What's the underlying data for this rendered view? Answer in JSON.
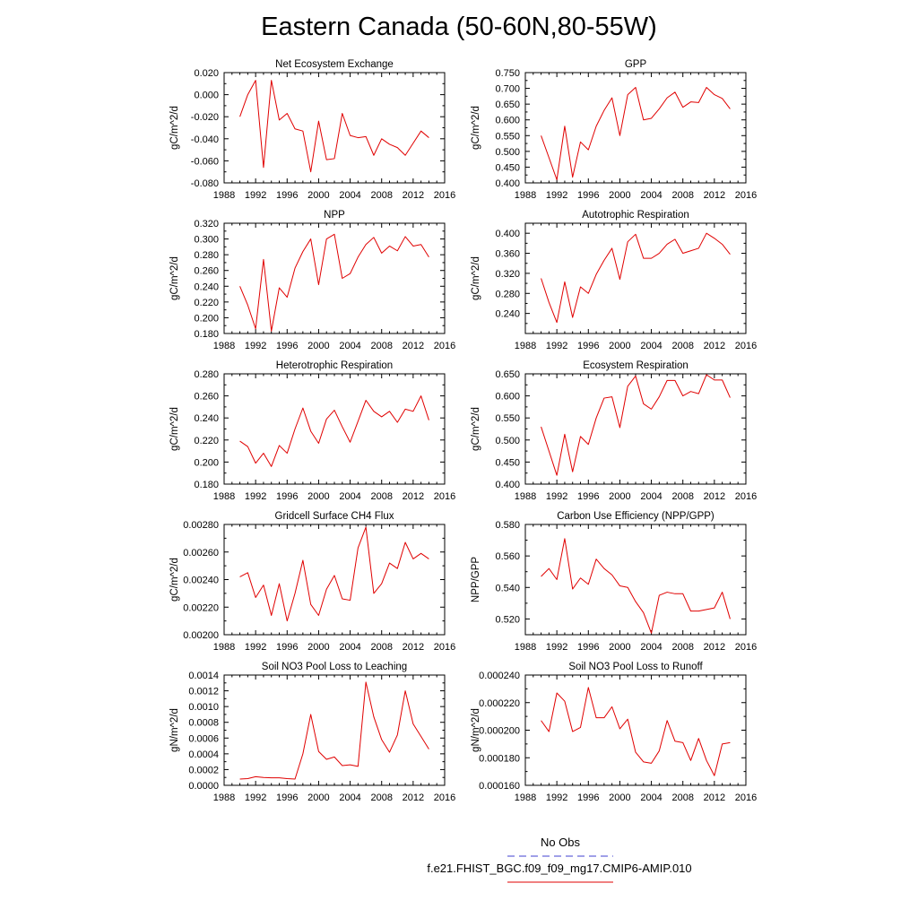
{
  "page": {
    "title": "Eastern Canada (50-60N,80-55W)"
  },
  "legend": {
    "obs_label": "No Obs",
    "obs_color": "#4040d0",
    "model_label": "f.e21.FHIST_BGC.f09_f09_mg17.CMIP6-AMIP.010",
    "model_color": "#e00000"
  },
  "chart_data": [
    {
      "type": "line",
      "title": "Net Ecosystem Exchange",
      "ylabel": "gC/m^2/d",
      "xlabel": "",
      "xlim": [
        1988,
        2016
      ],
      "ylim": [
        -0.08,
        0.02
      ],
      "xticks": [
        1988,
        1992,
        1996,
        2000,
        2004,
        2008,
        2012,
        2016
      ],
      "xtick_labels": [
        "1988",
        "1992",
        "1996",
        "2000",
        "2004",
        "2008",
        "2012",
        "2016"
      ],
      "yticks": [
        -0.08,
        -0.06,
        -0.04,
        -0.02,
        0.0,
        0.02
      ],
      "ytick_labels": [
        "-0.080",
        "-0.060",
        "-0.040",
        "-0.020",
        "0.000",
        "0.020"
      ],
      "x": [
        1990,
        1991,
        1992,
        1993,
        1994,
        1995,
        1996,
        1997,
        1998,
        1999,
        2000,
        2001,
        2002,
        2003,
        2004,
        2005,
        2006,
        2007,
        2008,
        2009,
        2010,
        2011,
        2012,
        2013,
        2014
      ],
      "series": [
        {
          "values": [
            -0.02,
            0.0,
            0.013,
            -0.066,
            0.013,
            -0.023,
            -0.017,
            -0.031,
            -0.033,
            -0.07,
            -0.024,
            -0.059,
            -0.058,
            -0.017,
            -0.037,
            -0.039,
            -0.038,
            -0.055,
            -0.04,
            -0.045,
            -0.048,
            -0.055,
            -0.044,
            -0.033,
            -0.039
          ]
        }
      ]
    },
    {
      "type": "line",
      "title": "GPP",
      "ylabel": "gC/m^2/d",
      "xlabel": "",
      "xlim": [
        1988,
        2016
      ],
      "ylim": [
        0.4,
        0.75
      ],
      "xticks": [
        1988,
        1992,
        1996,
        2000,
        2004,
        2008,
        2012,
        2016
      ],
      "xtick_labels": [
        "1988",
        "1992",
        "1996",
        "2000",
        "2004",
        "2008",
        "2012",
        "2016"
      ],
      "yticks": [
        0.4,
        0.45,
        0.5,
        0.55,
        0.6,
        0.65,
        0.7,
        0.75
      ],
      "ytick_labels": [
        "0.400",
        "0.450",
        "0.500",
        "0.550",
        "0.600",
        "0.650",
        "0.700",
        "0.750"
      ],
      "x": [
        1990,
        1991,
        1992,
        1993,
        1994,
        1995,
        1996,
        1997,
        1998,
        1999,
        2000,
        2001,
        2002,
        2003,
        2004,
        2005,
        2006,
        2007,
        2008,
        2009,
        2010,
        2011,
        2012,
        2013,
        2014
      ],
      "series": [
        {
          "values": [
            0.55,
            0.48,
            0.41,
            0.58,
            0.418,
            0.53,
            0.505,
            0.58,
            0.63,
            0.67,
            0.55,
            0.68,
            0.703,
            0.6,
            0.605,
            0.635,
            0.67,
            0.688,
            0.64,
            0.657,
            0.655,
            0.703,
            0.68,
            0.668,
            0.635
          ]
        }
      ]
    },
    {
      "type": "line",
      "title": "NPP",
      "ylabel": "gC/m^2/d",
      "xlabel": "",
      "xlim": [
        1988,
        2016
      ],
      "ylim": [
        0.18,
        0.32
      ],
      "xticks": [
        1988,
        1992,
        1996,
        2000,
        2004,
        2008,
        2012,
        2016
      ],
      "xtick_labels": [
        "1988",
        "1992",
        "1996",
        "2000",
        "2004",
        "2008",
        "2012",
        "2016"
      ],
      "yticks": [
        0.18,
        0.2,
        0.22,
        0.24,
        0.26,
        0.28,
        0.3,
        0.32
      ],
      "ytick_labels": [
        "0.180",
        "0.200",
        "0.220",
        "0.240",
        "0.260",
        "0.280",
        "0.300",
        "0.320"
      ],
      "x": [
        1990,
        1991,
        1992,
        1993,
        1994,
        1995,
        1996,
        1997,
        1998,
        1999,
        2000,
        2001,
        2002,
        2003,
        2004,
        2005,
        2006,
        2007,
        2008,
        2009,
        2010,
        2011,
        2012,
        2013,
        2014
      ],
      "series": [
        {
          "values": [
            0.24,
            0.216,
            0.186,
            0.274,
            0.183,
            0.238,
            0.226,
            0.263,
            0.284,
            0.3,
            0.242,
            0.3,
            0.306,
            0.25,
            0.256,
            0.277,
            0.293,
            0.302,
            0.282,
            0.291,
            0.285,
            0.303,
            0.291,
            0.293,
            0.277
          ]
        }
      ]
    },
    {
      "type": "line",
      "title": "Autotrophic Respiration",
      "ylabel": "gC/m^2/d",
      "xlabel": "",
      "xlim": [
        1988,
        2016
      ],
      "ylim": [
        0.2,
        0.42
      ],
      "xticks": [
        1988,
        1992,
        1996,
        2000,
        2004,
        2008,
        2012,
        2016
      ],
      "xtick_labels": [
        "1988",
        "1992",
        "1996",
        "2000",
        "2004",
        "2008",
        "2012",
        "2016"
      ],
      "yticks": [
        0.24,
        0.28,
        0.32,
        0.36,
        0.4
      ],
      "ytick_labels": [
        "0.240",
        "0.280",
        "0.320",
        "0.360",
        "0.400"
      ],
      "x": [
        1990,
        1991,
        1992,
        1993,
        1994,
        1995,
        1996,
        1997,
        1998,
        1999,
        2000,
        2001,
        2002,
        2003,
        2004,
        2005,
        2006,
        2007,
        2008,
        2009,
        2010,
        2011,
        2012,
        2013,
        2014
      ],
      "series": [
        {
          "values": [
            0.31,
            0.262,
            0.222,
            0.303,
            0.232,
            0.293,
            0.28,
            0.318,
            0.346,
            0.37,
            0.308,
            0.383,
            0.398,
            0.35,
            0.35,
            0.36,
            0.378,
            0.388,
            0.36,
            0.365,
            0.37,
            0.4,
            0.39,
            0.378,
            0.358
          ]
        }
      ]
    },
    {
      "type": "line",
      "title": "Heterotrophic Respiration",
      "ylabel": "gC/m^2/d",
      "xlabel": "",
      "xlim": [
        1988,
        2016
      ],
      "ylim": [
        0.18,
        0.28
      ],
      "xticks": [
        1988,
        1992,
        1996,
        2000,
        2004,
        2008,
        2012,
        2016
      ],
      "xtick_labels": [
        "1988",
        "1992",
        "1996",
        "2000",
        "2004",
        "2008",
        "2012",
        "2016"
      ],
      "yticks": [
        0.18,
        0.2,
        0.22,
        0.24,
        0.26,
        0.28
      ],
      "ytick_labels": [
        "0.180",
        "0.200",
        "0.220",
        "0.240",
        "0.260",
        "0.280"
      ],
      "x": [
        1990,
        1991,
        1992,
        1993,
        1994,
        1995,
        1996,
        1997,
        1998,
        1999,
        2000,
        2001,
        2002,
        2003,
        2004,
        2005,
        2006,
        2007,
        2008,
        2009,
        2010,
        2011,
        2012,
        2013,
        2014
      ],
      "series": [
        {
          "values": [
            0.219,
            0.214,
            0.199,
            0.208,
            0.196,
            0.215,
            0.208,
            0.23,
            0.249,
            0.228,
            0.217,
            0.239,
            0.247,
            0.232,
            0.218,
            0.237,
            0.256,
            0.246,
            0.241,
            0.246,
            0.236,
            0.248,
            0.246,
            0.26,
            0.238
          ]
        }
      ]
    },
    {
      "type": "line",
      "title": "Ecosystem Respiration",
      "ylabel": "gC/m^2/d",
      "xlabel": "",
      "xlim": [
        1988,
        2016
      ],
      "ylim": [
        0.4,
        0.65
      ],
      "xticks": [
        1988,
        1992,
        1996,
        2000,
        2004,
        2008,
        2012,
        2016
      ],
      "xtick_labels": [
        "1988",
        "1992",
        "1996",
        "2000",
        "2004",
        "2008",
        "2012",
        "2016"
      ],
      "yticks": [
        0.4,
        0.45,
        0.5,
        0.55,
        0.6,
        0.65
      ],
      "ytick_labels": [
        "0.400",
        "0.450",
        "0.500",
        "0.550",
        "0.600",
        "0.650"
      ],
      "x": [
        1990,
        1991,
        1992,
        1993,
        1994,
        1995,
        1996,
        1997,
        1998,
        1999,
        2000,
        2001,
        2002,
        2003,
        2004,
        2005,
        2006,
        2007,
        2008,
        2009,
        2010,
        2011,
        2012,
        2013,
        2014
      ],
      "series": [
        {
          "values": [
            0.53,
            0.475,
            0.42,
            0.513,
            0.428,
            0.508,
            0.49,
            0.55,
            0.595,
            0.598,
            0.528,
            0.622,
            0.645,
            0.582,
            0.57,
            0.598,
            0.635,
            0.635,
            0.6,
            0.61,
            0.605,
            0.648,
            0.636,
            0.636,
            0.596
          ]
        }
      ]
    },
    {
      "type": "line",
      "title": "Gridcell Surface CH4 Flux",
      "ylabel": "gC/m^2/d",
      "xlabel": "",
      "xlim": [
        1988,
        2016
      ],
      "ylim": [
        0.002,
        0.0028
      ],
      "xticks": [
        1988,
        1992,
        1996,
        2000,
        2004,
        2008,
        2012,
        2016
      ],
      "xtick_labels": [
        "1988",
        "1992",
        "1996",
        "2000",
        "2004",
        "2008",
        "2012",
        "2016"
      ],
      "yticks": [
        0.002,
        0.0022,
        0.0024,
        0.0026,
        0.0028
      ],
      "ytick_labels": [
        "0.00200",
        "0.00220",
        "0.00240",
        "0.00260",
        "0.00280"
      ],
      "x": [
        1990,
        1991,
        1992,
        1993,
        1994,
        1995,
        1996,
        1997,
        1998,
        1999,
        2000,
        2001,
        2002,
        2003,
        2004,
        2005,
        2006,
        2007,
        2008,
        2009,
        2010,
        2011,
        2012,
        2013,
        2014
      ],
      "series": [
        {
          "values": [
            0.00242,
            0.00245,
            0.00227,
            0.00236,
            0.00214,
            0.00237,
            0.0021,
            0.0023,
            0.00254,
            0.00222,
            0.00214,
            0.00233,
            0.00243,
            0.00226,
            0.00225,
            0.00263,
            0.00278,
            0.0023,
            0.00237,
            0.00252,
            0.00248,
            0.00267,
            0.00255,
            0.00259,
            0.00255
          ]
        }
      ]
    },
    {
      "type": "line",
      "title": "Carbon Use Efficiency (NPP/GPP)",
      "ylabel": "NPP/GPP",
      "xlabel": "",
      "xlim": [
        1988,
        2016
      ],
      "ylim": [
        0.51,
        0.58
      ],
      "xticks": [
        1988,
        1992,
        1996,
        2000,
        2004,
        2008,
        2012,
        2016
      ],
      "xtick_labels": [
        "1988",
        "1992",
        "1996",
        "2000",
        "2004",
        "2008",
        "2012",
        "2016"
      ],
      "yticks": [
        0.52,
        0.54,
        0.56,
        0.58
      ],
      "ytick_labels": [
        "0.520",
        "0.540",
        "0.560",
        "0.580"
      ],
      "x": [
        1990,
        1991,
        1992,
        1993,
        1994,
        1995,
        1996,
        1997,
        1998,
        1999,
        2000,
        2001,
        2002,
        2003,
        2004,
        2005,
        2006,
        2007,
        2008,
        2009,
        2010,
        2011,
        2012,
        2013,
        2014
      ],
      "series": [
        {
          "values": [
            0.547,
            0.552,
            0.545,
            0.571,
            0.539,
            0.546,
            0.542,
            0.558,
            0.552,
            0.548,
            0.541,
            0.54,
            0.531,
            0.524,
            0.511,
            0.535,
            0.537,
            0.536,
            0.536,
            0.525,
            0.525,
            0.526,
            0.527,
            0.537,
            0.52
          ]
        }
      ]
    },
    {
      "type": "line",
      "title": "Soil NO3 Pool Loss to Leaching",
      "ylabel": "gN/m^2/d",
      "xlabel": "",
      "xlim": [
        1988,
        2016
      ],
      "ylim": [
        0,
        0.0014
      ],
      "xticks": [
        1988,
        1992,
        1996,
        2000,
        2004,
        2008,
        2012,
        2016
      ],
      "xtick_labels": [
        "1988",
        "1992",
        "1996",
        "2000",
        "2004",
        "2008",
        "2012",
        "2016"
      ],
      "yticks": [
        0,
        0.0002,
        0.0004,
        0.0006,
        0.0008,
        0.001,
        0.0012,
        0.0014
      ],
      "ytick_labels": [
        "0.0000",
        "0.0002",
        "0.0004",
        "0.0006",
        "0.0008",
        "0.0010",
        "0.0012",
        "0.0014"
      ],
      "x": [
        1990,
        1991,
        1992,
        1993,
        1994,
        1995,
        1996,
        1997,
        1998,
        1999,
        2000,
        2001,
        2002,
        2003,
        2004,
        2005,
        2006,
        2007,
        2008,
        2009,
        2010,
        2011,
        2012,
        2013,
        2014
      ],
      "series": [
        {
          "values": [
            8e-05,
            8.5e-05,
            0.00011,
            0.0001,
            9.5e-05,
            9.5e-05,
            8.5e-05,
            8e-05,
            0.0004,
            0.0009,
            0.00043,
            0.00033,
            0.00036,
            0.00025,
            0.00026,
            0.00024,
            0.00131,
            0.00087,
            0.00058,
            0.00042,
            0.00064,
            0.0012,
            0.00078,
            0.00062,
            0.00046
          ]
        }
      ]
    },
    {
      "type": "line",
      "title": "Soil NO3 Pool Loss to Runoff",
      "ylabel": "gN/m^2/d",
      "xlabel": "",
      "xlim": [
        1988,
        2016
      ],
      "ylim": [
        0.00016,
        0.00024
      ],
      "xticks": [
        1988,
        1992,
        1996,
        2000,
        2004,
        2008,
        2012,
        2016
      ],
      "xtick_labels": [
        "1988",
        "1992",
        "1996",
        "2000",
        "2004",
        "2008",
        "2012",
        "2016"
      ],
      "yticks": [
        0.00016,
        0.00018,
        0.0002,
        0.00022,
        0.00024
      ],
      "ytick_labels": [
        "0.000160",
        "0.000180",
        "0.000200",
        "0.000220",
        "0.000240"
      ],
      "x": [
        1990,
        1991,
        1992,
        1993,
        1994,
        1995,
        1996,
        1997,
        1998,
        1999,
        2000,
        2001,
        2002,
        2003,
        2004,
        2005,
        2006,
        2007,
        2008,
        2009,
        2010,
        2011,
        2012,
        2013,
        2014
      ],
      "series": [
        {
          "values": [
            0.000207,
            0.000199,
            0.000227,
            0.000221,
            0.000199,
            0.000202,
            0.000231,
            0.000209,
            0.000209,
            0.000217,
            0.000201,
            0.000208,
            0.000184,
            0.000177,
            0.000176,
            0.000185,
            0.000207,
            0.000192,
            0.000191,
            0.000178,
            0.000194,
            0.000178,
            0.000167,
            0.00019,
            0.000191
          ]
        }
      ]
    }
  ]
}
